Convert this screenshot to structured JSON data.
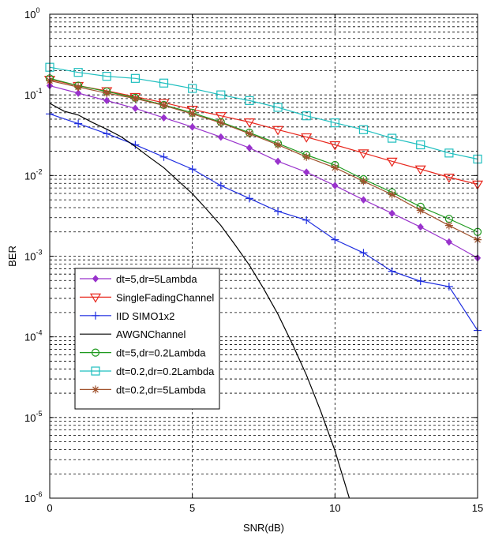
{
  "chart_data": {
    "type": "line",
    "xlabel": "SNR(dB)",
    "ylabel": "BER",
    "xlim": [
      0,
      15
    ],
    "ylim": [
      1e-06,
      1
    ],
    "y_scale": "log",
    "grid": true,
    "legend_position": "bottom-left",
    "x_ticks": [
      {
        "value": 0,
        "label": "0"
      },
      {
        "value": 5,
        "label": "5"
      },
      {
        "value": 10,
        "label": "10"
      },
      {
        "value": 15,
        "label": "15"
      }
    ],
    "y_ticks": [
      {
        "value": 1,
        "base": "10",
        "exp": "0"
      },
      {
        "value": 0.1,
        "base": "10",
        "exp": "-1"
      },
      {
        "value": 0.01,
        "base": "10",
        "exp": "-2"
      },
      {
        "value": 0.001,
        "base": "10",
        "exp": "-3"
      },
      {
        "value": 0.0001,
        "base": "10",
        "exp": "-4"
      },
      {
        "value": 1e-05,
        "base": "10",
        "exp": "-5"
      },
      {
        "value": 1e-06,
        "base": "10",
        "exp": "-6"
      }
    ],
    "series": [
      {
        "name": "dt=5,dr=5Lambda",
        "color": "#9933cc",
        "marker": "diamond",
        "x": [
          0,
          1,
          2,
          3,
          4,
          5,
          6,
          7,
          8,
          9,
          10,
          11,
          12,
          13,
          14,
          15
        ],
        "y": [
          0.13,
          0.105,
          0.085,
          0.068,
          0.052,
          0.04,
          0.03,
          0.022,
          0.015,
          0.011,
          0.0075,
          0.005,
          0.0034,
          0.0023,
          0.0015,
          0.00095
        ]
      },
      {
        "name": "SingleFadingChannel",
        "color": "#e8281e",
        "marker": "triangle-down",
        "x": [
          0,
          1,
          2,
          3,
          4,
          5,
          6,
          7,
          8,
          9,
          10,
          11,
          12,
          13,
          14,
          15
        ],
        "y": [
          0.155,
          0.13,
          0.112,
          0.095,
          0.08,
          0.066,
          0.055,
          0.046,
          0.037,
          0.03,
          0.024,
          0.019,
          0.015,
          0.012,
          0.0095,
          0.0078
        ]
      },
      {
        "name": "IID SIMO1x2",
        "color": "#1f2ee0",
        "marker": "plus",
        "x": [
          0,
          1,
          2,
          3,
          4,
          5,
          6,
          7,
          8,
          9,
          10,
          11,
          12,
          13,
          14,
          15
        ],
        "y": [
          0.058,
          0.044,
          0.033,
          0.024,
          0.017,
          0.012,
          0.0075,
          0.0052,
          0.0036,
          0.0028,
          0.0016,
          0.0011,
          0.00065,
          0.00049,
          0.00042,
          0.00012
        ]
      },
      {
        "name": "AWGNChannel",
        "color": "#000000",
        "marker": "none",
        "x": [
          0,
          0.5,
          1,
          1.5,
          2,
          2.5,
          3,
          3.5,
          4,
          4.5,
          5,
          5.5,
          6,
          6.5,
          7,
          7.5,
          8,
          8.5,
          9,
          9.5,
          10,
          10.5
        ],
        "y": [
          0.0786,
          0.0628,
          0.0563,
          0.0454,
          0.0375,
          0.0303,
          0.0229,
          0.0168,
          0.0125,
          0.0086,
          0.00596,
          0.00381,
          0.0024,
          0.00138,
          0.000773,
          0.000395,
          0.000191,
          8.25e-05,
          3.36e-05,
          1.2e-05,
          3.87e-06,
          1.01e-06
        ]
      },
      {
        "name": "dt=5,dr=0.2Lambda",
        "color": "#1f9a1f",
        "marker": "circle",
        "x": [
          0,
          1,
          2,
          3,
          4,
          5,
          6,
          7,
          8,
          9,
          10,
          11,
          12,
          13,
          14,
          15
        ],
        "y": [
          0.16,
          0.13,
          0.11,
          0.092,
          0.075,
          0.06,
          0.046,
          0.034,
          0.025,
          0.018,
          0.0135,
          0.009,
          0.0062,
          0.0041,
          0.0029,
          0.002
        ]
      },
      {
        "name": "dt=0.2,dr=0.2Lambda",
        "color": "#1fbfbf",
        "marker": "square",
        "x": [
          0,
          1,
          2,
          3,
          4,
          5,
          6,
          7,
          8,
          9,
          10,
          11,
          12,
          13,
          14,
          15
        ],
        "y": [
          0.22,
          0.19,
          0.17,
          0.16,
          0.14,
          0.12,
          0.1,
          0.085,
          0.07,
          0.055,
          0.045,
          0.037,
          0.029,
          0.024,
          0.019,
          0.016
        ]
      },
      {
        "name": "dt=0.2,dr=5Lambda",
        "color": "#a0522d",
        "marker": "star",
        "x": [
          0,
          1,
          2,
          3,
          4,
          5,
          6,
          7,
          8,
          9,
          10,
          11,
          12,
          13,
          14,
          15
        ],
        "y": [
          0.15,
          0.125,
          0.105,
          0.09,
          0.074,
          0.058,
          0.045,
          0.033,
          0.024,
          0.017,
          0.0125,
          0.0085,
          0.0058,
          0.0037,
          0.0024,
          0.0016
        ]
      }
    ]
  }
}
